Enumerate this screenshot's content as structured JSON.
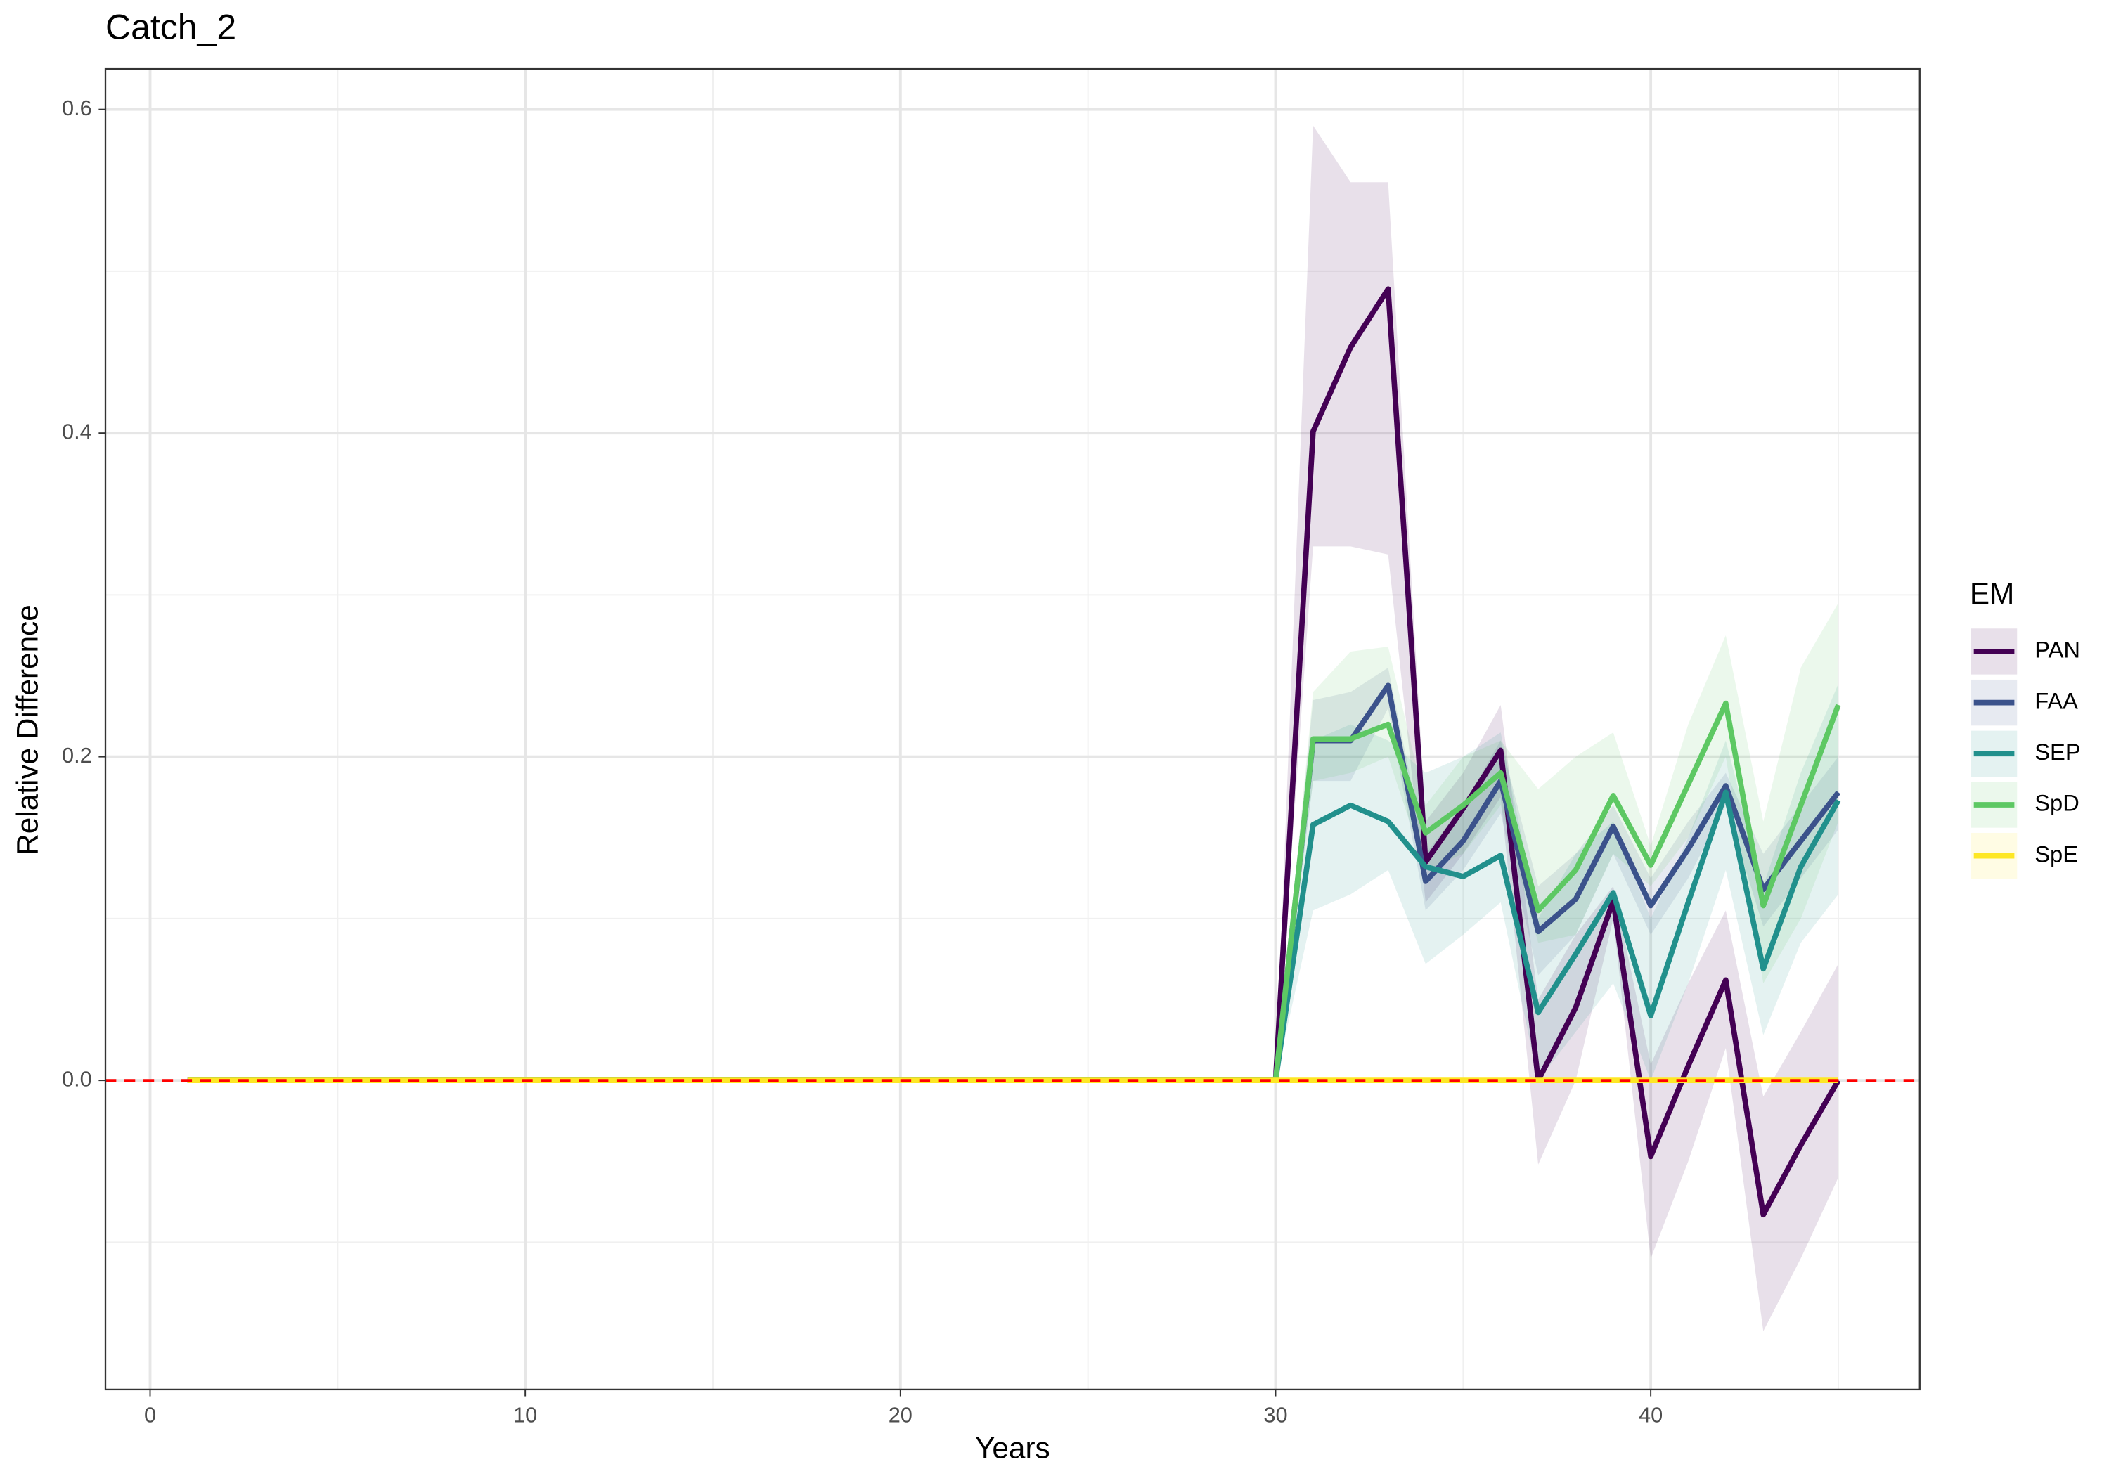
{
  "chart_data": {
    "type": "line",
    "title": "Catch_2",
    "x_label": "Years",
    "y_label": "Relative Difference",
    "legend_title": "EM",
    "legend_position": "right",
    "grid": true,
    "xlim": [
      -1.19,
      47.17
    ],
    "ylim": [
      -0.191,
      0.625
    ],
    "xticks": [
      0,
      10,
      20,
      30,
      40
    ],
    "x_minor_ticks": [
      5,
      15,
      25,
      35,
      45
    ],
    "yticks": [
      {
        "value": 0,
        "label": "0.0"
      },
      {
        "value": 0.2,
        "label": "0.2"
      },
      {
        "value": 0.4,
        "label": "0.4"
      },
      {
        "value": 0.6,
        "label": "0.6"
      }
    ],
    "y_minor_ticks": [
      -0.1,
      0.1,
      0.3,
      0.5
    ],
    "hline": {
      "value": 0,
      "color": "#ff0000"
    },
    "x": [
      1,
      2,
      3,
      4,
      5,
      6,
      7,
      8,
      9,
      10,
      11,
      12,
      13,
      14,
      15,
      16,
      17,
      18,
      19,
      20,
      21,
      22,
      23,
      24,
      25,
      26,
      27,
      28,
      29,
      30,
      31,
      32,
      33,
      34,
      35,
      36,
      37,
      38,
      39,
      40,
      41,
      42,
      43,
      44,
      45
    ],
    "series": [
      {
        "name": "PAN",
        "color": "#440154",
        "values": [
          0,
          0,
          0,
          0,
          0,
          0,
          0,
          0,
          0,
          0,
          0,
          0,
          0,
          0,
          0,
          0,
          0,
          0,
          0,
          0,
          0,
          0,
          0,
          0,
          0,
          0,
          0,
          0,
          0,
          0,
          0.401,
          0.453,
          0.489,
          0.135,
          0.168,
          0.204,
          0,
          0.045,
          0.111,
          -0.047,
          0.009,
          0.062,
          -0.083,
          -0.04,
          0
        ],
        "upper": [
          0,
          0,
          0,
          0,
          0,
          0,
          0,
          0,
          0,
          0,
          0,
          0,
          0,
          0,
          0,
          0,
          0,
          0,
          0,
          0,
          0,
          0,
          0,
          0,
          0,
          0,
          0,
          0,
          0,
          0,
          0.59,
          0.555,
          0.555,
          0.16,
          0.19,
          0.232,
          0.05,
          0.09,
          0.12,
          0.01,
          0.06,
          0.105,
          -0.01,
          0.03,
          0.072
        ],
        "lower": [
          0,
          0,
          0,
          0,
          0,
          0,
          0,
          0,
          0,
          0,
          0,
          0,
          0,
          0,
          0,
          0,
          0,
          0,
          0,
          0,
          0,
          0,
          0,
          0,
          0,
          0,
          0,
          0,
          0,
          0,
          0.33,
          0.33,
          0.325,
          0.11,
          0.14,
          0.175,
          -0.052,
          0,
          0.1,
          -0.11,
          -0.05,
          0.02,
          -0.155,
          -0.11,
          -0.06
        ]
      },
      {
        "name": "FAA",
        "color": "#3b528b",
        "values": [
          0,
          0,
          0,
          0,
          0,
          0,
          0,
          0,
          0,
          0,
          0,
          0,
          0,
          0,
          0,
          0,
          0,
          0,
          0,
          0,
          0,
          0,
          0,
          0,
          0,
          0,
          0,
          0,
          0,
          0,
          0.21,
          0.21,
          0.244,
          0.123,
          0.148,
          0.185,
          0.092,
          0.112,
          0.157,
          0.108,
          0.143,
          0.182,
          0.118,
          0.148,
          0.178
        ],
        "upper": [
          0,
          0,
          0,
          0,
          0,
          0,
          0,
          0,
          0,
          0,
          0,
          0,
          0,
          0,
          0,
          0,
          0,
          0,
          0,
          0,
          0,
          0,
          0,
          0,
          0,
          0,
          0,
          0,
          0,
          0,
          0.235,
          0.24,
          0.255,
          0.14,
          0.17,
          0.21,
          0.12,
          0.14,
          0.17,
          0.125,
          0.16,
          0.19,
          0.14,
          0.17,
          0.2
        ],
        "lower": [
          0,
          0,
          0,
          0,
          0,
          0,
          0,
          0,
          0,
          0,
          0,
          0,
          0,
          0,
          0,
          0,
          0,
          0,
          0,
          0,
          0,
          0,
          0,
          0,
          0,
          0,
          0,
          0,
          0,
          0,
          0.185,
          0.185,
          0.23,
          0.105,
          0.13,
          0.165,
          0.065,
          0.09,
          0.14,
          0.09,
          0.125,
          0.17,
          0.095,
          0.125,
          0.155
        ]
      },
      {
        "name": "SEP",
        "color": "#21908c",
        "values": [
          0,
          0,
          0,
          0,
          0,
          0,
          0,
          0,
          0,
          0,
          0,
          0,
          0,
          0,
          0,
          0,
          0,
          0,
          0,
          0,
          0,
          0,
          0,
          0,
          0,
          0,
          0,
          0,
          0,
          0,
          0.158,
          0.17,
          0.16,
          0.132,
          0.126,
          0.139,
          0.042,
          0.078,
          0.116,
          0.04,
          0.11,
          0.178,
          0.069,
          0.132,
          0.173
        ],
        "upper": [
          0,
          0,
          0,
          0,
          0,
          0,
          0,
          0,
          0,
          0,
          0,
          0,
          0,
          0,
          0,
          0,
          0,
          0,
          0,
          0,
          0,
          0,
          0,
          0,
          0,
          0,
          0,
          0,
          0,
          0,
          0.21,
          0.22,
          0.21,
          0.19,
          0.2,
          0.215,
          0.1,
          0.14,
          0.16,
          0.1,
          0.15,
          0.21,
          0.12,
          0.19,
          0.245
        ],
        "lower": [
          0,
          0,
          0,
          0,
          0,
          0,
          0,
          0,
          0,
          0,
          0,
          0,
          0,
          0,
          0,
          0,
          0,
          0,
          0,
          0,
          0,
          0,
          0,
          0,
          0,
          0,
          0,
          0,
          0,
          0,
          0.105,
          0.115,
          0.13,
          0.072,
          0.09,
          0.11,
          0,
          0.03,
          0.06,
          0,
          0.06,
          0.13,
          0.028,
          0.085,
          0.115
        ]
      },
      {
        "name": "SpD",
        "color": "#5dc863",
        "values": [
          0,
          0,
          0,
          0,
          0,
          0,
          0,
          0,
          0,
          0,
          0,
          0,
          0,
          0,
          0,
          0,
          0,
          0,
          0,
          0,
          0,
          0,
          0,
          0,
          0,
          0,
          0,
          0,
          0,
          0,
          0.211,
          0.211,
          0.22,
          0.153,
          0.17,
          0.19,
          0.105,
          0.13,
          0.176,
          0.133,
          0.183,
          0.233,
          0.108,
          0.17,
          0.232
        ],
        "upper": [
          0,
          0,
          0,
          0,
          0,
          0,
          0,
          0,
          0,
          0,
          0,
          0,
          0,
          0,
          0,
          0,
          0,
          0,
          0,
          0,
          0,
          0,
          0,
          0,
          0,
          0,
          0,
          0,
          0,
          0,
          0.24,
          0.265,
          0.268,
          0.17,
          0.2,
          0.21,
          0.18,
          0.2,
          0.215,
          0.145,
          0.22,
          0.275,
          0.16,
          0.255,
          0.295
        ],
        "lower": [
          0,
          0,
          0,
          0,
          0,
          0,
          0,
          0,
          0,
          0,
          0,
          0,
          0,
          0,
          0,
          0,
          0,
          0,
          0,
          0,
          0,
          0,
          0,
          0,
          0,
          0,
          0,
          0,
          0,
          0,
          0.185,
          0.19,
          0.2,
          0.13,
          0.14,
          0.17,
          0.085,
          0.09,
          0.14,
          0.12,
          0.15,
          0.2,
          0.06,
          0.1,
          0.16
        ]
      },
      {
        "name": "SpE",
        "color": "#fde725",
        "values": [
          0,
          0,
          0,
          0,
          0,
          0,
          0,
          0,
          0,
          0,
          0,
          0,
          0,
          0,
          0,
          0,
          0,
          0,
          0,
          0,
          0,
          0,
          0,
          0,
          0,
          0,
          0,
          0,
          0,
          0,
          0,
          0,
          0,
          0,
          0,
          0,
          0,
          0,
          0,
          0,
          0,
          0,
          0,
          0,
          0
        ],
        "upper": [
          0,
          0,
          0,
          0,
          0,
          0,
          0,
          0,
          0,
          0,
          0,
          0,
          0,
          0,
          0,
          0,
          0,
          0,
          0,
          0,
          0,
          0,
          0,
          0,
          0,
          0,
          0,
          0,
          0,
          0,
          0,
          0,
          0,
          0,
          0,
          0,
          0,
          0,
          0,
          0,
          0,
          0,
          0,
          0,
          0
        ],
        "lower": [
          0,
          0,
          0,
          0,
          0,
          0,
          0,
          0,
          0,
          0,
          0,
          0,
          0,
          0,
          0,
          0,
          0,
          0,
          0,
          0,
          0,
          0,
          0,
          0,
          0,
          0,
          0,
          0,
          0,
          0,
          0,
          0,
          0,
          0,
          0,
          0,
          0,
          0,
          0,
          0,
          0,
          0,
          0,
          0,
          0
        ]
      }
    ]
  }
}
